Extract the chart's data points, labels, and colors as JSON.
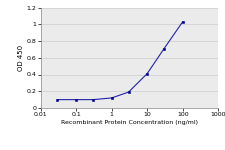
{
  "x": [
    0.03,
    0.1,
    0.3,
    1,
    3,
    10,
    30,
    100
  ],
  "y": [
    0.1,
    0.1,
    0.1,
    0.12,
    0.19,
    0.41,
    0.71,
    1.03
  ],
  "line_color": "#2222aa",
  "marker_color": "#00008B",
  "marker": "s",
  "marker_size": 2.0,
  "line_width": 0.8,
  "xlabel": "Recombinant Protein Concentration (ng/ml)",
  "ylabel": "OD 450",
  "xlim": [
    0.01,
    1000
  ],
  "ylim": [
    0,
    1.2
  ],
  "yticks": [
    0,
    0.2,
    0.4,
    0.6,
    0.8,
    1.0,
    1.2
  ],
  "xticks": [
    0.01,
    0.1,
    1,
    10,
    100,
    1000
  ],
  "xtick_labels": [
    "0.01",
    "0.1",
    "1",
    "10",
    "100",
    "1000"
  ],
  "grid_color": "#cccccc",
  "background_color": "#ebebeb",
  "xlabel_fontsize": 4.5,
  "ylabel_fontsize": 5.0,
  "tick_fontsize": 4.5
}
